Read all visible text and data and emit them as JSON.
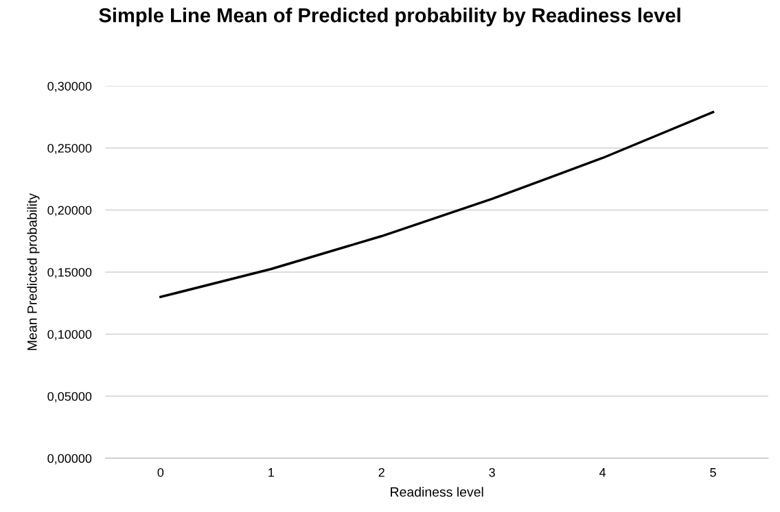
{
  "chart_data": {
    "type": "line",
    "title": "Simple Line Mean of Predicted probability by Readiness level",
    "xlabel": "Readiness level",
    "ylabel": "Mean Predicted probability",
    "categories": [
      "0",
      "1",
      "2",
      "3",
      "4",
      "5"
    ],
    "series": [
      {
        "color": "#000000",
        "values": [
          0.13,
          0.1525,
          0.179,
          0.209,
          0.242,
          0.279
        ]
      }
    ],
    "ylim": [
      0,
      0.3
    ],
    "yticks": [
      {
        "value": 0,
        "label": "0,00000"
      },
      {
        "value": 0.05,
        "label": "0,05000"
      },
      {
        "value": 0.1,
        "label": "0,10000"
      },
      {
        "value": 0.15,
        "label": "0,15000"
      },
      {
        "value": 0.2,
        "label": "0,20000"
      },
      {
        "value": 0.25,
        "label": "0,25000"
      },
      {
        "value": 0.3,
        "label": "0,30000"
      }
    ],
    "grid": "y",
    "legend": false,
    "marker": "none",
    "line_style": "solid"
  }
}
